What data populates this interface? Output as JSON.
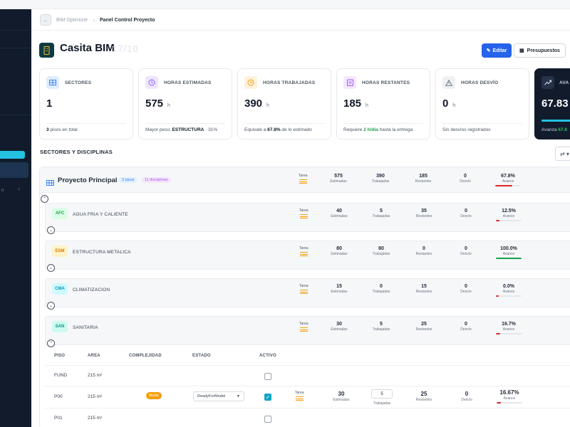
{
  "breadcrumb": {
    "app": "BIM Optimizer",
    "current": "Panel Control Proyecto"
  },
  "project": {
    "title": "Casita BIM",
    "ghost": "17/10"
  },
  "actions": {
    "edit": "Editar",
    "budgets": "Presupuestos"
  },
  "kpis": [
    {
      "label": "SECTORES",
      "value": "1",
      "unit": "",
      "foot_b": "3",
      "foot": " pisos en total"
    },
    {
      "label": "HORAS ESTIMADAS",
      "value": "575",
      "unit": "h",
      "foot": "Mayor peso: ",
      "foot_b": "ESTRUCTURA",
      "foot2": " · 31%"
    },
    {
      "label": "HORAS TRABAJADAS",
      "value": "390",
      "unit": "h",
      "foot": "Equivale a ",
      "foot_b": "67.8%",
      "foot2": " de lo estimado"
    },
    {
      "label": "HORAS RESTANTES",
      "value": "185",
      "unit": "h",
      "foot": "Requiere ",
      "foot_g": "2 h/día",
      "foot2": " hasta la entrega"
    },
    {
      "label": "HORAS DESVÍO",
      "value": "0",
      "unit": "h",
      "foot": "Sin desvíos registrados"
    },
    {
      "label": "AVA",
      "value": "67.83",
      "foot": "Avanza ",
      "foot_g": "67.8"
    }
  ],
  "section": {
    "title": "SECTORES Y DISCIPLINAS",
    "btn": "⇄ ▾"
  },
  "labels": {
    "tarea": "Tarea",
    "est": "Estimadas",
    "trab": "Trabajadas",
    "rest": "Restantes",
    "desv": "Desvío",
    "av": "Avance"
  },
  "principal": {
    "name": "Proyecto Principal",
    "chip1": "3 pisos",
    "chip2": "11 disciplinas",
    "est": "575",
    "trab": "390",
    "rest": "185",
    "desv": "0",
    "av": "67.8%",
    "pct": 0.678
  },
  "disciplines": [
    {
      "code": "AFC",
      "name": "AGUA FRIA Y CALIENTE",
      "est": "40",
      "trab": "5",
      "rest": "35",
      "desv": "0",
      "av": "12.5%",
      "pct": 0.125,
      "codeColor": "#16a34a",
      "codeBg": "#dcfce7",
      "barColor": "#dc2626"
    },
    {
      "code": "ESM",
      "name": "ESTRUCTURA METALICA",
      "est": "80",
      "trab": "80",
      "rest": "0",
      "desv": "0",
      "av": "100.0%",
      "pct": 1.0,
      "codeColor": "#d97706",
      "codeBg": "#fef3c7",
      "barColor": "#16a34a"
    },
    {
      "code": "CMA",
      "name": "CLIMATIZACION",
      "est": "15",
      "trab": "0",
      "rest": "15",
      "desv": "0",
      "av": "0.0%",
      "pct": 0.0,
      "codeColor": "#0891b2",
      "codeBg": "#cffafe",
      "barColor": "#dc2626"
    },
    {
      "code": "SAN",
      "name": "SANITARIA",
      "est": "30",
      "trab": "5",
      "rest": "25",
      "desv": "0",
      "av": "16.7%",
      "pct": 0.167,
      "codeColor": "#0d9488",
      "codeBg": "#ccfbf1",
      "barColor": "#dc2626"
    }
  ],
  "floors": {
    "headers": {
      "piso": "PISO",
      "area": "AREA",
      "comp": "COMPLEJIDAD",
      "estado": "ESTADO",
      "activo": "ACTIVO"
    },
    "rows": [
      {
        "piso": "FUND",
        "area": "215 m²",
        "active": false
      },
      {
        "piso": "P00",
        "area": "215 m²",
        "active": true,
        "comp": "Media",
        "estado": "ReadyForModel",
        "est": "30",
        "trab": "5",
        "rest": "25",
        "desv": "0",
        "av": "16.67%",
        "pct": 0.1667
      },
      {
        "piso": "P01",
        "area": "215 m²",
        "active": false
      }
    ]
  }
}
